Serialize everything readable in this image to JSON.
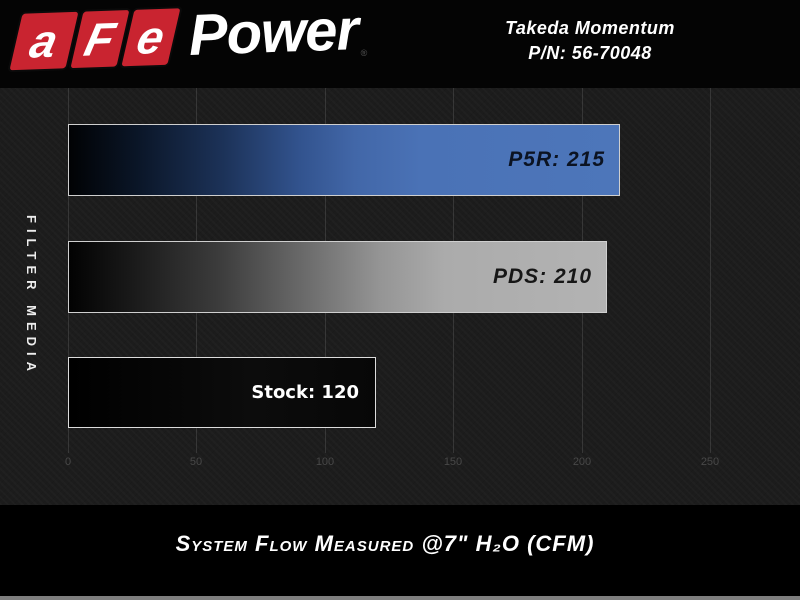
{
  "header": {
    "logo": {
      "letters": [
        "a",
        "F",
        "e"
      ],
      "word": "Power",
      "registered": "®",
      "red": "#c92430"
    },
    "product": {
      "line1": "Takeda Momentum",
      "line2": "P/N: 56-70048"
    }
  },
  "chart_data": {
    "type": "bar",
    "orientation": "horizontal",
    "title": "System Flow Measured @7\" H₂O (CFM)",
    "ylabel": "FILTER MEDIA",
    "units": "CFM",
    "categories": [
      "P5R",
      "PDS",
      "Stock"
    ],
    "values": [
      215,
      210,
      120
    ],
    "bars": [
      {
        "name": "P5R",
        "value": 215,
        "label": "P5R: 215",
        "color": "#4a72b8",
        "style": "black-to-blue-gradient"
      },
      {
        "name": "PDS",
        "value": 210,
        "label": "PDS: 210",
        "color": "#b3b3b3",
        "style": "black-to-silver-gradient"
      },
      {
        "name": "Stock",
        "value": 120,
        "label": "Stock: 120",
        "color": "#0b0b0b",
        "style": "solid-black-white-border"
      }
    ],
    "x_ticks": [
      0,
      50,
      100,
      150,
      200,
      250
    ],
    "xlim": [
      0,
      250
    ],
    "grid": "vertical-lines",
    "legend": "none"
  }
}
